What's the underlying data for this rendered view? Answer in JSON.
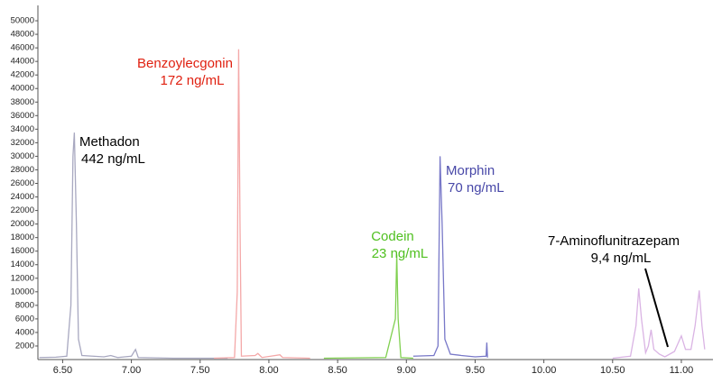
{
  "chart_data": {
    "type": "line",
    "xlim": [
      6.32,
      11.23
    ],
    "ylim": [
      0,
      52000
    ],
    "xticks": [
      {
        "value": 6.5,
        "label": "6.50"
      },
      {
        "value": 7.0,
        "label": "7.00"
      },
      {
        "value": 7.5,
        "label": "7.50"
      },
      {
        "value": 8.0,
        "label": "8.00"
      },
      {
        "value": 8.5,
        "label": "8.50"
      },
      {
        "value": 9.0,
        "label": "9.00"
      },
      {
        "value": 9.5,
        "label": "9.50"
      },
      {
        "value": 10.0,
        "label": "10.00"
      },
      {
        "value": 10.5,
        "label": "10.50"
      },
      {
        "value": 11.0,
        "label": "11.00"
      }
    ],
    "yticks": [
      2000,
      4000,
      6000,
      8000,
      10000,
      12000,
      14000,
      16000,
      18000,
      20000,
      22000,
      24000,
      26000,
      28000,
      30000,
      32000,
      34000,
      36000,
      38000,
      40000,
      42000,
      44000,
      46000,
      48000,
      50000
    ],
    "series": [
      {
        "name": "Methadon",
        "concentration": "442 ng/mL",
        "color": "#a8a8c0",
        "label_color": "#000000",
        "x": [
          6.33,
          6.45,
          6.53,
          6.56,
          6.575,
          6.585,
          6.6,
          6.615,
          6.64,
          6.8,
          6.85,
          6.9,
          7.0,
          7.03,
          7.05,
          7.3,
          7.7
        ],
        "values": [
          300,
          350,
          500,
          8000,
          30000,
          33500,
          20000,
          3000,
          600,
          400,
          600,
          300,
          500,
          1500,
          300,
          200,
          200
        ]
      },
      {
        "name": "Benzoylecgonin",
        "concentration": "172 ng/mL",
        "color": "#f4a8a8",
        "label_color": "#e02010",
        "x": [
          7.6,
          7.75,
          7.77,
          7.78,
          7.79,
          7.8,
          7.9,
          7.92,
          7.95,
          8.08,
          8.1,
          8.3
        ],
        "values": [
          200,
          300,
          10000,
          45800,
          20000,
          500,
          600,
          900,
          300,
          700,
          300,
          200
        ]
      },
      {
        "name": "Codein",
        "concentration": "23 ng/mL",
        "color": "#80d050",
        "label_color": "#50c020",
        "x": [
          8.4,
          8.85,
          8.92,
          8.93,
          8.94,
          8.96,
          9.05
        ],
        "values": [
          200,
          300,
          6000,
          15500,
          6000,
          300,
          200
        ]
      },
      {
        "name": "Morphin",
        "concentration": "70 ng/mL",
        "color": "#7878c8",
        "label_color": "#4848a8",
        "x": [
          9.05,
          9.2,
          9.23,
          9.245,
          9.26,
          9.28,
          9.32,
          9.4,
          9.5,
          9.58,
          9.585,
          9.59
        ],
        "values": [
          500,
          600,
          2000,
          30000,
          20000,
          3000,
          800,
          600,
          400,
          500,
          2500,
          300
        ]
      },
      {
        "name": "7-Aminoflunitrazepam",
        "concentration": "9,4 ng/mL",
        "color": "#dab4e4",
        "label_color": "#000000",
        "x": [
          10.5,
          10.63,
          10.67,
          10.69,
          10.71,
          10.74,
          10.76,
          10.78,
          10.8,
          10.84,
          10.88,
          10.95,
          11.0,
          11.03,
          11.07,
          11.1,
          11.13,
          11.15,
          11.17
        ],
        "values": [
          200,
          500,
          5000,
          10500,
          6000,
          1000,
          2000,
          4400,
          1500,
          800,
          400,
          1200,
          3500,
          1500,
          1500,
          5000,
          10200,
          5000,
          1500
        ]
      }
    ]
  }
}
